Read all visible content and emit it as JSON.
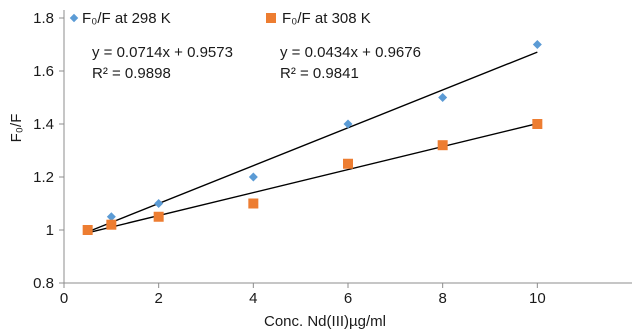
{
  "chart_data": {
    "type": "scatter",
    "title": "",
    "xlabel": "Conc. Nd(III)µg/ml",
    "ylabel": "F₀/F",
    "xlim": [
      0,
      12
    ],
    "ylim": [
      0.8,
      1.8
    ],
    "x_ticks": [
      "0",
      "2",
      "4",
      "6",
      "8",
      "10"
    ],
    "y_ticks": [
      "0.8",
      "1",
      "1.2",
      "1.4",
      "1.6",
      "1.8"
    ],
    "grid": false,
    "legend_position": "top-left",
    "series": [
      {
        "name": "F₀/F at 298 K",
        "marker": "diamond",
        "color": "#5b9bd5",
        "x": [
          0.5,
          1,
          2,
          4,
          6,
          8,
          10
        ],
        "y": [
          1.0,
          1.05,
          1.1,
          1.2,
          1.4,
          1.5,
          1.7
        ],
        "trendline": {
          "slope": 0.0714,
          "intercept": 0.9573,
          "x_range": [
            0.5,
            10
          ]
        },
        "equation": "y = 0.0714x + 0.9573",
        "r2": "R² = 0.9898"
      },
      {
        "name": "F₀/F at 308 K",
        "marker": "square",
        "color": "#ed7d31",
        "x": [
          0.5,
          1,
          2,
          4,
          6,
          8,
          10
        ],
        "y": [
          1.0,
          1.02,
          1.05,
          1.1,
          1.25,
          1.32,
          1.4
        ],
        "trendline": {
          "slope": 0.0434,
          "intercept": 0.9676,
          "x_range": [
            0.5,
            10
          ]
        },
        "equation": "y = 0.0434x + 0.9676",
        "r2": "R² = 0.9841"
      }
    ]
  }
}
